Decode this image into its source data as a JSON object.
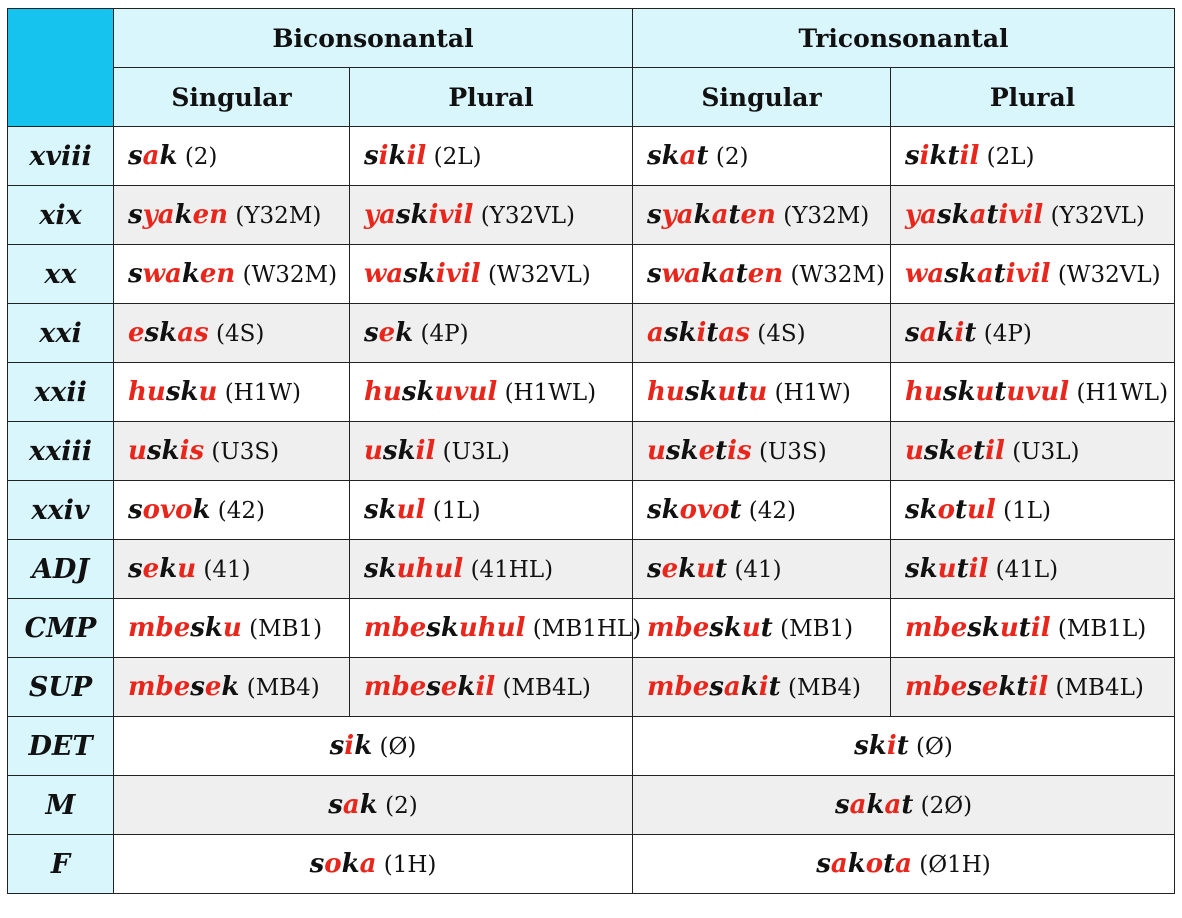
{
  "headers": {
    "groups": [
      "Biconsonantal",
      "Triconsonantal"
    ],
    "sub": [
      "Singular",
      "Plural",
      "Singular",
      "Plural"
    ]
  },
  "rows": [
    {
      "label": "xviii",
      "cells": [
        {
          "parts": [
            [
              "k",
              "s"
            ],
            [
              "r",
              "a"
            ],
            [
              "k",
              "k"
            ]
          ],
          "code": "(2)"
        },
        {
          "parts": [
            [
              "k",
              "s"
            ],
            [
              "r",
              "i"
            ],
            [
              "k",
              "k"
            ],
            [
              "r",
              "il"
            ]
          ],
          "code": "(2L)"
        },
        {
          "parts": [
            [
              "k",
              "sk"
            ],
            [
              "r",
              "a"
            ],
            [
              "k",
              "t"
            ]
          ],
          "code": "(2)"
        },
        {
          "parts": [
            [
              "k",
              "s"
            ],
            [
              "r",
              "i"
            ],
            [
              "k",
              "kt"
            ],
            [
              "r",
              "il"
            ]
          ],
          "code": "(2L)"
        }
      ]
    },
    {
      "label": "xix",
      "cells": [
        {
          "parts": [
            [
              "k",
              "s"
            ],
            [
              "r",
              "ya"
            ],
            [
              "k",
              "k"
            ],
            [
              "r",
              "en"
            ]
          ],
          "code": "(Y32M)"
        },
        {
          "parts": [
            [
              "r",
              "ya"
            ],
            [
              "k",
              "sk"
            ],
            [
              "r",
              "ivil"
            ]
          ],
          "code": "(Y32VL)"
        },
        {
          "parts": [
            [
              "k",
              "s"
            ],
            [
              "r",
              "ya"
            ],
            [
              "k",
              "k"
            ],
            [
              "r",
              "a"
            ],
            [
              "k",
              "t"
            ],
            [
              "r",
              "en"
            ]
          ],
          "code": "(Y32M)"
        },
        {
          "parts": [
            [
              "r",
              "ya"
            ],
            [
              "k",
              "sk"
            ],
            [
              "r",
              "a"
            ],
            [
              "k",
              "t"
            ],
            [
              "r",
              "ivil"
            ]
          ],
          "code": "(Y32VL)"
        }
      ]
    },
    {
      "label": "xx",
      "cells": [
        {
          "parts": [
            [
              "k",
              "s"
            ],
            [
              "r",
              "wa"
            ],
            [
              "k",
              "k"
            ],
            [
              "r",
              "en"
            ]
          ],
          "code": "(W32M)"
        },
        {
          "parts": [
            [
              "r",
              "wa"
            ],
            [
              "k",
              "sk"
            ],
            [
              "r",
              "ivil"
            ]
          ],
          "code": "(W32VL)"
        },
        {
          "parts": [
            [
              "k",
              "s"
            ],
            [
              "r",
              "wa"
            ],
            [
              "k",
              "k"
            ],
            [
              "r",
              "a"
            ],
            [
              "k",
              "t"
            ],
            [
              "r",
              "en"
            ]
          ],
          "code": "(W32M)"
        },
        {
          "parts": [
            [
              "r",
              "wa"
            ],
            [
              "k",
              "sk"
            ],
            [
              "r",
              "a"
            ],
            [
              "k",
              "t"
            ],
            [
              "r",
              "ivil"
            ]
          ],
          "code": "(W32VL)"
        }
      ]
    },
    {
      "label": "xxi",
      "cells": [
        {
          "parts": [
            [
              "r",
              "e"
            ],
            [
              "k",
              "sk"
            ],
            [
              "r",
              "as"
            ]
          ],
          "code": "(4S)"
        },
        {
          "parts": [
            [
              "k",
              "s"
            ],
            [
              "r",
              "e"
            ],
            [
              "k",
              "k"
            ]
          ],
          "code": "(4P)"
        },
        {
          "parts": [
            [
              "r",
              "a"
            ],
            [
              "k",
              "sk"
            ],
            [
              "r",
              "i"
            ],
            [
              "k",
              "t"
            ],
            [
              "r",
              "as"
            ]
          ],
          "code": "(4S)"
        },
        {
          "parts": [
            [
              "k",
              "s"
            ],
            [
              "r",
              "a"
            ],
            [
              "k",
              "k"
            ],
            [
              "r",
              "i"
            ],
            [
              "k",
              "t"
            ]
          ],
          "code": "(4P)"
        }
      ]
    },
    {
      "label": "xxii",
      "cells": [
        {
          "parts": [
            [
              "r",
              "hu"
            ],
            [
              "k",
              "sk"
            ],
            [
              "r",
              "u"
            ]
          ],
          "code": "(H1W)"
        },
        {
          "parts": [
            [
              "r",
              "hu"
            ],
            [
              "k",
              "sk"
            ],
            [
              "r",
              "uvul"
            ]
          ],
          "code": "(H1WL)"
        },
        {
          "parts": [
            [
              "r",
              "hu"
            ],
            [
              "k",
              "sk"
            ],
            [
              "r",
              "u"
            ],
            [
              "k",
              "t"
            ],
            [
              "r",
              "u"
            ]
          ],
          "code": "(H1W)"
        },
        {
          "parts": [
            [
              "r",
              "hu"
            ],
            [
              "k",
              "sk"
            ],
            [
              "r",
              "u"
            ],
            [
              "k",
              "t"
            ],
            [
              "r",
              "uvul"
            ]
          ],
          "code": "(H1WL)"
        }
      ]
    },
    {
      "label": "xxiii",
      "cells": [
        {
          "parts": [
            [
              "r",
              "u"
            ],
            [
              "k",
              "sk"
            ],
            [
              "r",
              "is"
            ]
          ],
          "code": "(U3S)"
        },
        {
          "parts": [
            [
              "r",
              "u"
            ],
            [
              "k",
              "sk"
            ],
            [
              "r",
              "il"
            ]
          ],
          "code": "(U3L)"
        },
        {
          "parts": [
            [
              "r",
              "u"
            ],
            [
              "k",
              "sk"
            ],
            [
              "r",
              "e"
            ],
            [
              "k",
              "t"
            ],
            [
              "r",
              "is"
            ]
          ],
          "code": "(U3S)"
        },
        {
          "parts": [
            [
              "r",
              "u"
            ],
            [
              "k",
              "sk"
            ],
            [
              "r",
              "e"
            ],
            [
              "k",
              "t"
            ],
            [
              "r",
              "il"
            ]
          ],
          "code": "(U3L)"
        }
      ]
    },
    {
      "label": "xxiv",
      "cells": [
        {
          "parts": [
            [
              "k",
              "s"
            ],
            [
              "r",
              "ovo"
            ],
            [
              "k",
              "k"
            ]
          ],
          "code": "(42)"
        },
        {
          "parts": [
            [
              "k",
              "sk"
            ],
            [
              "r",
              "ul"
            ]
          ],
          "code": "(1L)"
        },
        {
          "parts": [
            [
              "k",
              "sk"
            ],
            [
              "r",
              "ovo"
            ],
            [
              "k",
              "t"
            ]
          ],
          "code": "(42)"
        },
        {
          "parts": [
            [
              "k",
              "sk"
            ],
            [
              "r",
              "o"
            ],
            [
              "k",
              "t"
            ],
            [
              "r",
              "ul"
            ]
          ],
          "code": "(1L)"
        }
      ]
    },
    {
      "label": "ADJ",
      "cells": [
        {
          "parts": [
            [
              "k",
              "s"
            ],
            [
              "r",
              "e"
            ],
            [
              "k",
              "k"
            ],
            [
              "r",
              "u"
            ]
          ],
          "code": "(41)"
        },
        {
          "parts": [
            [
              "k",
              "sk"
            ],
            [
              "r",
              "uhul"
            ]
          ],
          "code": "(41HL)"
        },
        {
          "parts": [
            [
              "k",
              "s"
            ],
            [
              "r",
              "e"
            ],
            [
              "k",
              "k"
            ],
            [
              "r",
              "u"
            ],
            [
              "k",
              "t"
            ]
          ],
          "code": "(41)"
        },
        {
          "parts": [
            [
              "k",
              "sk"
            ],
            [
              "r",
              "u"
            ],
            [
              "k",
              "t"
            ],
            [
              "r",
              "il"
            ]
          ],
          "code": "(41L)"
        }
      ]
    },
    {
      "label": "CMP",
      "cells": [
        {
          "parts": [
            [
              "r",
              "mbe"
            ],
            [
              "k",
              "sk"
            ],
            [
              "r",
              "u"
            ]
          ],
          "code": "(MB1)"
        },
        {
          "parts": [
            [
              "r",
              "mbe"
            ],
            [
              "k",
              "sk"
            ],
            [
              "r",
              "uhul"
            ]
          ],
          "code": "(MB1HL)"
        },
        {
          "parts": [
            [
              "r",
              "mbe"
            ],
            [
              "k",
              "sk"
            ],
            [
              "r",
              "u"
            ],
            [
              "k",
              "t"
            ]
          ],
          "code": "(MB1)"
        },
        {
          "parts": [
            [
              "r",
              "mbe"
            ],
            [
              "k",
              "sk"
            ],
            [
              "r",
              "u"
            ],
            [
              "k",
              "t"
            ],
            [
              "r",
              "il"
            ]
          ],
          "code": "(MB1L)"
        }
      ]
    },
    {
      "label": "SUP",
      "cells": [
        {
          "parts": [
            [
              "r",
              "mbe"
            ],
            [
              "k",
              "s"
            ],
            [
              "r",
              "e"
            ],
            [
              "k",
              "k"
            ]
          ],
          "code": "(MB4)"
        },
        {
          "parts": [
            [
              "r",
              "mbe"
            ],
            [
              "k",
              "s"
            ],
            [
              "r",
              "e"
            ],
            [
              "k",
              "k"
            ],
            [
              "r",
              "il"
            ]
          ],
          "code": "(MB4L)"
        },
        {
          "parts": [
            [
              "r",
              "mbe"
            ],
            [
              "k",
              "s"
            ],
            [
              "r",
              "a"
            ],
            [
              "k",
              "k"
            ],
            [
              "r",
              "i"
            ],
            [
              "k",
              "t"
            ]
          ],
          "code": "(MB4)"
        },
        {
          "parts": [
            [
              "r",
              "mbe"
            ],
            [
              "k",
              "s"
            ],
            [
              "r",
              "e"
            ],
            [
              "k",
              "kt"
            ],
            [
              "r",
              "il"
            ]
          ],
          "code": "(MB4L)"
        }
      ]
    }
  ],
  "merged_rows": [
    {
      "label": "DET",
      "cells": [
        {
          "parts": [
            [
              "k",
              "s"
            ],
            [
              "r",
              "i"
            ],
            [
              "k",
              "k"
            ]
          ],
          "code": "(Ø)"
        },
        {
          "parts": [
            [
              "k",
              "sk"
            ],
            [
              "r",
              "i"
            ],
            [
              "k",
              "t"
            ]
          ],
          "code": "(Ø)"
        }
      ]
    },
    {
      "label": "M",
      "cells": [
        {
          "parts": [
            [
              "k",
              "s"
            ],
            [
              "r",
              "a"
            ],
            [
              "k",
              "k"
            ]
          ],
          "code": "(2)"
        },
        {
          "parts": [
            [
              "k",
              "s"
            ],
            [
              "r",
              "a"
            ],
            [
              "k",
              "k"
            ],
            [
              "r",
              "a"
            ],
            [
              "k",
              "t"
            ]
          ],
          "code": "(2Ø)"
        }
      ]
    },
    {
      "label": "F",
      "cells": [
        {
          "parts": [
            [
              "k",
              "s"
            ],
            [
              "r",
              "o"
            ],
            [
              "k",
              "k"
            ],
            [
              "r",
              "a"
            ]
          ],
          "code": "(1H)"
        },
        {
          "parts": [
            [
              "k",
              "s"
            ],
            [
              "r",
              "a"
            ],
            [
              "k",
              "k"
            ],
            [
              "r",
              "o"
            ],
            [
              "k",
              "t"
            ],
            [
              "r",
              "a"
            ]
          ],
          "code": "(Ø1H)"
        }
      ]
    }
  ],
  "colors": {
    "header_bg": "#d9f6fc",
    "corner_bg": "#16c3ee",
    "stripe_bg": "#efefef",
    "highlight": "#e8261c"
  }
}
